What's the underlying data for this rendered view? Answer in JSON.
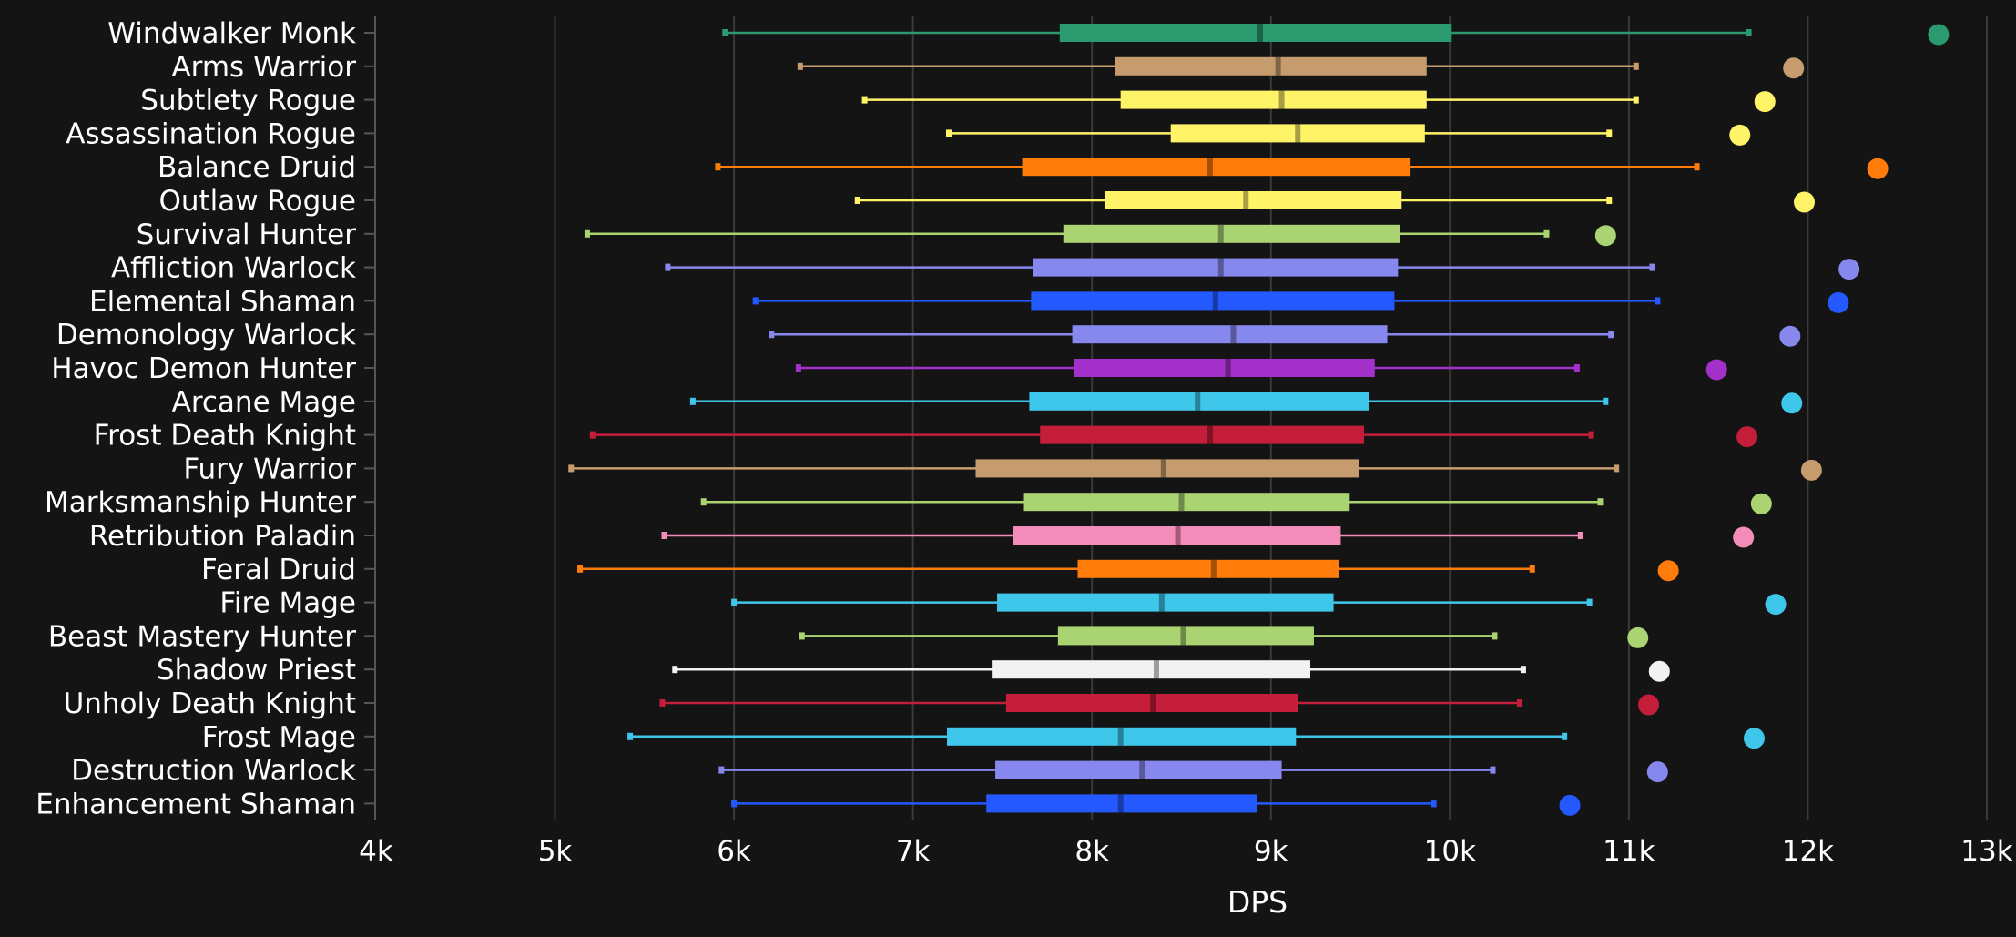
{
  "chart_data": {
    "type": "box",
    "title": "",
    "xlabel": "DPS",
    "ylabel": "",
    "xlim": [
      4000,
      13000
    ],
    "x_ticks": [
      4000,
      5000,
      6000,
      7000,
      8000,
      9000,
      10000,
      11000,
      12000,
      13000
    ],
    "x_tick_labels": [
      "4k",
      "5k",
      "6k",
      "7k",
      "8k",
      "9k",
      "10k",
      "11k",
      "12k",
      "13k"
    ],
    "grid": "vertical",
    "background": "#141414",
    "series": [
      {
        "name": "Windwalker Monk",
        "color": "#2b9a6f",
        "min": 5950,
        "q1": 7820,
        "median": 8940,
        "q3": 10010,
        "max": 11670,
        "outlier": 12730
      },
      {
        "name": "Arms Warrior",
        "color": "#c69b6d",
        "min": 6370,
        "q1": 8130,
        "median": 9040,
        "q3": 9870,
        "max": 11040,
        "outlier": 11920
      },
      {
        "name": "Subtlety Rogue",
        "color": "#fff468",
        "min": 6730,
        "q1": 8160,
        "median": 9060,
        "q3": 9870,
        "max": 11040,
        "outlier": 11760
      },
      {
        "name": "Assassination Rogue",
        "color": "#fff468",
        "min": 7200,
        "q1": 8440,
        "median": 9150,
        "q3": 9860,
        "max": 10890,
        "outlier": 11620
      },
      {
        "name": "Balance Druid",
        "color": "#ff7c0a",
        "min": 5910,
        "q1": 7610,
        "median": 8660,
        "q3": 9780,
        "max": 11380,
        "outlier": 12390
      },
      {
        "name": "Outlaw Rogue",
        "color": "#fff468",
        "min": 6690,
        "q1": 8070,
        "median": 8860,
        "q3": 9730,
        "max": 10890,
        "outlier": 11980
      },
      {
        "name": "Survival Hunter",
        "color": "#aad372",
        "min": 5180,
        "q1": 7840,
        "median": 8720,
        "q3": 9720,
        "max": 10540,
        "outlier": 10870
      },
      {
        "name": "Affliction Warlock",
        "color": "#8788ee",
        "min": 5630,
        "q1": 7670,
        "median": 8720,
        "q3": 9710,
        "max": 11130,
        "outlier": 12230
      },
      {
        "name": "Elemental Shaman",
        "color": "#2459ff",
        "min": 6120,
        "q1": 7660,
        "median": 8690,
        "q3": 9690,
        "max": 11160,
        "outlier": 12170
      },
      {
        "name": "Demonology Warlock",
        "color": "#8788ee",
        "min": 6210,
        "q1": 7890,
        "median": 8790,
        "q3": 9650,
        "max": 10900,
        "outlier": 11900
      },
      {
        "name": "Havoc Demon Hunter",
        "color": "#a330c9",
        "min": 6360,
        "q1": 7900,
        "median": 8760,
        "q3": 9580,
        "max": 10710,
        "outlier": 11490
      },
      {
        "name": "Arcane Mage",
        "color": "#3fc7eb",
        "min": 5770,
        "q1": 7650,
        "median": 8590,
        "q3": 9550,
        "max": 10870,
        "outlier": 11910
      },
      {
        "name": "Frost Death Knight",
        "color": "#c41e3a",
        "min": 5210,
        "q1": 7710,
        "median": 8660,
        "q3": 9520,
        "max": 10790,
        "outlier": 11660
      },
      {
        "name": "Fury Warrior",
        "color": "#c69b6d",
        "min": 5090,
        "q1": 7350,
        "median": 8400,
        "q3": 9490,
        "max": 10930,
        "outlier": 12020
      },
      {
        "name": "Marksmanship Hunter",
        "color": "#aad372",
        "min": 5830,
        "q1": 7620,
        "median": 8500,
        "q3": 9440,
        "max": 10840,
        "outlier": 11740
      },
      {
        "name": "Retribution Paladin",
        "color": "#f48cba",
        "min": 5610,
        "q1": 7560,
        "median": 8480,
        "q3": 9390,
        "max": 10730,
        "outlier": 11640
      },
      {
        "name": "Feral Druid",
        "color": "#ff7c0a",
        "min": 5140,
        "q1": 7920,
        "median": 8680,
        "q3": 9380,
        "max": 10460,
        "outlier": 11220
      },
      {
        "name": "Fire Mage",
        "color": "#3fc7eb",
        "min": 6000,
        "q1": 7470,
        "median": 8390,
        "q3": 9350,
        "max": 10780,
        "outlier": 11820
      },
      {
        "name": "Beast Mastery Hunter",
        "color": "#aad372",
        "min": 6380,
        "q1": 7810,
        "median": 8510,
        "q3": 9240,
        "max": 10250,
        "outlier": 11050
      },
      {
        "name": "Shadow Priest",
        "color": "#f2f2f2",
        "min": 5670,
        "q1": 7440,
        "median": 8360,
        "q3": 9220,
        "max": 10410,
        "outlier": 11170
      },
      {
        "name": "Unholy Death Knight",
        "color": "#c41e3a",
        "min": 5600,
        "q1": 7520,
        "median": 8340,
        "q3": 9150,
        "max": 10390,
        "outlier": 11110
      },
      {
        "name": "Frost Mage",
        "color": "#3fc7eb",
        "min": 5420,
        "q1": 7190,
        "median": 8160,
        "q3": 9140,
        "max": 10640,
        "outlier": 11700
      },
      {
        "name": "Destruction Warlock",
        "color": "#8788ee",
        "min": 5930,
        "q1": 7460,
        "median": 8280,
        "q3": 9060,
        "max": 10240,
        "outlier": 11160
      },
      {
        "name": "Enhancement Shaman",
        "color": "#2459ff",
        "min": 6000,
        "q1": 7410,
        "median": 8160,
        "q3": 8920,
        "max": 9910,
        "outlier": 10670
      }
    ]
  }
}
